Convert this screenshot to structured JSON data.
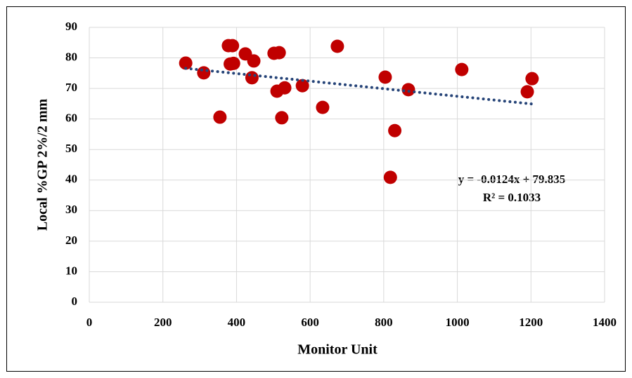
{
  "chart_data": {
    "type": "scatter",
    "xlabel": "Monitor Unit",
    "ylabel": "Local %GP 2%/2 mm",
    "series": [
      {
        "color": "#c00000",
        "x": [
          262,
          311,
          355,
          378,
          389,
          383,
          392,
          424,
          447,
          442,
          502,
          516,
          510,
          531,
          523,
          579,
          634,
          674,
          804,
          830,
          818,
          867,
          1012,
          1190,
          1203
        ],
        "values": [
          78.3,
          75.1,
          60.6,
          84.0,
          84.0,
          78.0,
          78.2,
          81.3,
          79.0,
          73.5,
          81.5,
          81.7,
          69.1,
          70.2,
          60.4,
          70.9,
          63.8,
          83.8,
          73.7,
          56.2,
          40.9,
          69.6,
          76.2,
          68.9,
          73.2
        ]
      }
    ],
    "trendline": {
      "slope": -0.0124,
      "intercept": 79.835,
      "color": "#264478",
      "equation": "y = -0.0124x + 79.835",
      "r_squared": "R² = 0.1033"
    },
    "xlim": [
      0,
      1400
    ],
    "xticks": [
      0,
      200,
      400,
      600,
      800,
      1000,
      1200,
      1400
    ],
    "ylim": [
      0,
      90
    ],
    "yticks": [
      0,
      10,
      20,
      30,
      40,
      50,
      60,
      70,
      80,
      90
    ],
    "grid": true
  }
}
